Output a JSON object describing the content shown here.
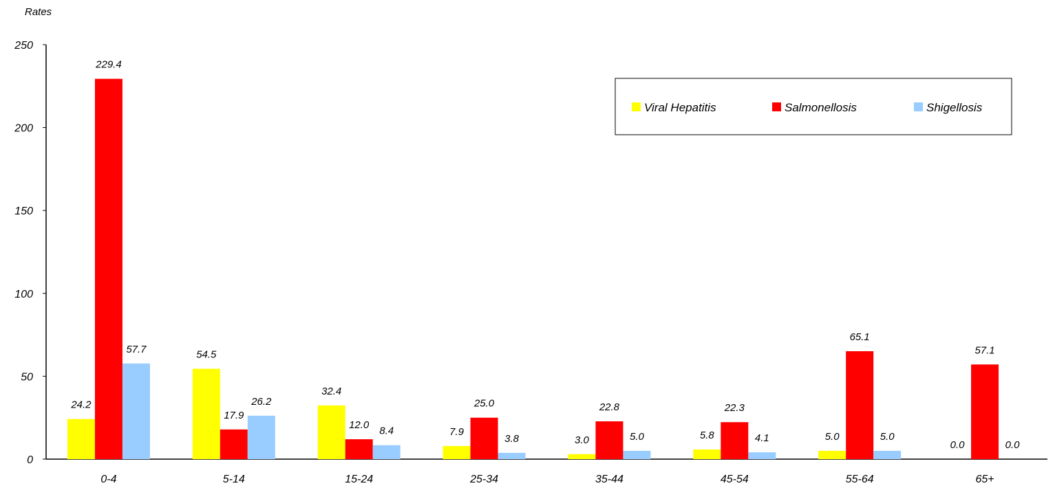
{
  "chart_data": {
    "type": "bar",
    "title": "",
    "ylabel": "Rates",
    "xlabel": "",
    "ylim": [
      0,
      250
    ],
    "yticks": [
      0,
      50,
      100,
      150,
      200,
      250
    ],
    "categories": [
      "0-4",
      "5-14",
      "15-24",
      "25-34",
      "35-44",
      "45-54",
      "55-64",
      "65+"
    ],
    "series": [
      {
        "name": "Viral Hepatitis",
        "color": "#ffff00",
        "values": [
          24.2,
          54.5,
          32.4,
          7.9,
          3.0,
          5.8,
          5.0,
          0.0
        ]
      },
      {
        "name": "Salmonellosis",
        "color": "#ff0000",
        "values": [
          229.4,
          17.9,
          12.0,
          25.0,
          22.8,
          22.3,
          65.1,
          57.1
        ]
      },
      {
        "name": "Shigellosis",
        "color": "#99ccff",
        "values": [
          57.7,
          26.2,
          8.4,
          3.8,
          5.0,
          4.1,
          5.0,
          0.0
        ]
      }
    ],
    "value_labels": [
      [
        "24.2",
        "54.5",
        "32.4",
        "7.9",
        "3.0",
        "5.8",
        "5.0",
        "0.0"
      ],
      [
        "229.4",
        "17.9",
        "12.0",
        "25.0",
        "22.8",
        "22.3",
        "65.1",
        "57.1"
      ],
      [
        "57.7",
        "26.2",
        "8.4",
        "3.8",
        "5.0",
        "4.1",
        "5.0",
        "0.0"
      ]
    ],
    "legend": "top-right",
    "grid": false
  }
}
